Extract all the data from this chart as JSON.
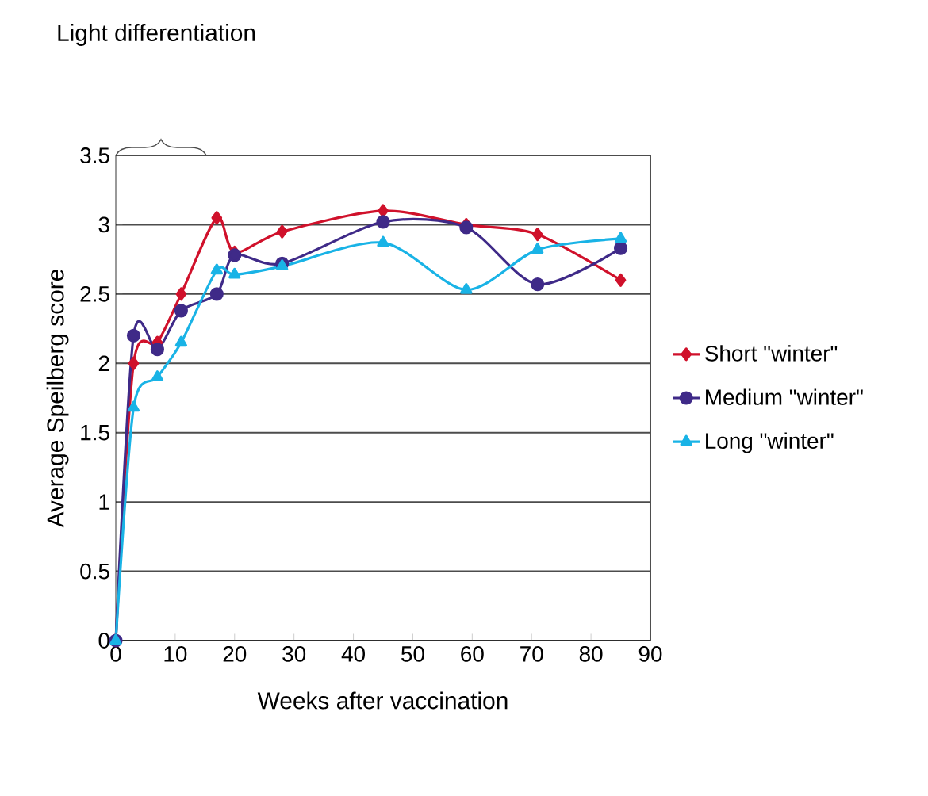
{
  "chart_data": {
    "type": "line",
    "xlabel": "Weeks after vaccination",
    "ylabel": "Average Speilberg score",
    "annotations": [
      "Light differentiation"
    ],
    "x": [
      0,
      3,
      7,
      11,
      17,
      20,
      28,
      45,
      59,
      71,
      85
    ],
    "xlim": [
      0,
      90
    ],
    "xticks": [
      0,
      10,
      20,
      30,
      40,
      50,
      60,
      70,
      80,
      90
    ],
    "ylim": [
      0,
      3.5
    ],
    "yticks": [
      0,
      0.5,
      1,
      1.5,
      2,
      2.5,
      3,
      3.5
    ],
    "grid": "y",
    "legend": "right",
    "line_style": "solid",
    "series": [
      {
        "name": "Short \"winter\"",
        "color": "#d0112b",
        "marker": "diamond",
        "values": [
          0,
          2.0,
          2.15,
          2.5,
          3.05,
          2.8,
          2.95,
          3.1,
          3.0,
          2.93,
          2.6
        ]
      },
      {
        "name": "Medium \"winter\"",
        "color": "#3f2a88",
        "marker": "circle",
        "values": [
          0,
          2.2,
          2.1,
          2.38,
          2.5,
          2.78,
          2.72,
          3.02,
          2.98,
          2.57,
          2.83
        ]
      },
      {
        "name": "Long \"winter\"",
        "color": "#19b3e6",
        "marker": "triangle",
        "values": [
          0,
          1.68,
          1.9,
          2.15,
          2.67,
          2.64,
          2.7,
          2.87,
          2.53,
          2.82,
          2.9
        ]
      }
    ]
  }
}
